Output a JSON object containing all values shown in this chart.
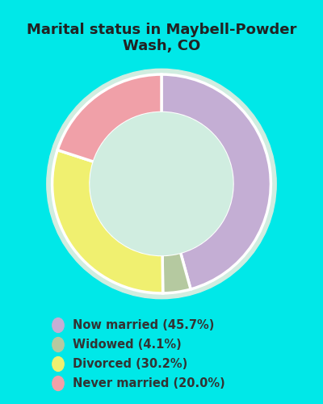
{
  "title": "Marital status in Maybell-Powder\nWash, CO",
  "slices": [
    45.7,
    4.1,
    30.2,
    20.0
  ],
  "labels": [
    "Now married (45.7%)",
    "Widowed (4.1%)",
    "Divorced (30.2%)",
    "Never married (20.0%)"
  ],
  "colors": [
    "#c4aed4",
    "#b5c9a0",
    "#f0f070",
    "#f0a0a8"
  ],
  "background_color": "#00e8e8",
  "chart_bg_color": "#d0ede0",
  "title_fontsize": 13,
  "legend_fontsize": 10.5,
  "title_color": "#222222",
  "legend_text_color": "#333333"
}
